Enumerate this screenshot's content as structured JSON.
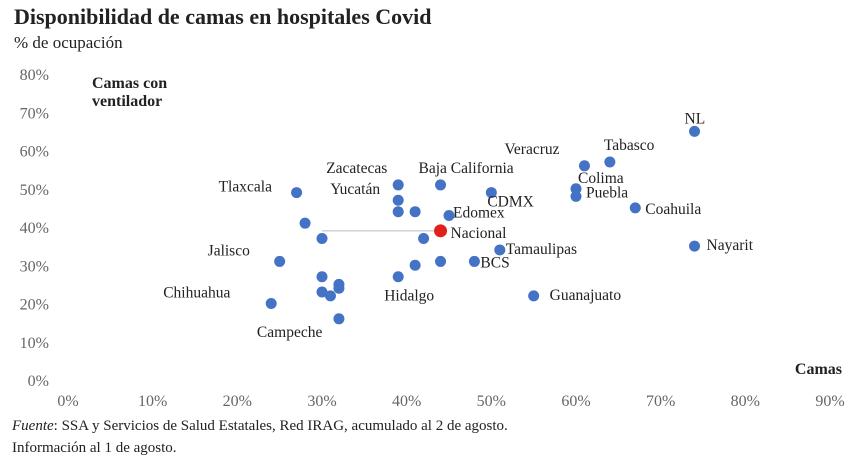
{
  "title": "Disponibilidad de camas en hospitales Covid",
  "subtitle": "% de ocupación",
  "footer": {
    "source_label": "Fuente",
    "source_text": ": SSA y Servicios de Salud Estatales, Red IRAG, acumulado al 2 de agosto.",
    "note": "Información al 1 de agosto."
  },
  "chart_data": {
    "type": "scatter",
    "xlabel": "Camas",
    "ylabel_lines": [
      "Camas con",
      "ventilador"
    ],
    "xlim": [
      0,
      90
    ],
    "ylim": [
      0,
      80
    ],
    "xticks": [
      "0%",
      "10%",
      "20%",
      "30%",
      "40%",
      "50%",
      "60%",
      "70%",
      "80%",
      "90%"
    ],
    "yticks": [
      "0%",
      "10%",
      "20%",
      "30%",
      "40%",
      "50%",
      "60%",
      "70%",
      "80%"
    ],
    "colors": {
      "point": "#4472c4",
      "highlight": "#e0201c",
      "reference_line": "#bbbbbb"
    },
    "points": [
      {
        "label": "NL",
        "x": 74,
        "y": 65
      },
      {
        "label": "Tabasco",
        "x": 64,
        "y": 57
      },
      {
        "label": "Veracruz",
        "x": 61,
        "y": 56
      },
      {
        "label": "Colima",
        "x": 60,
        "y": 50
      },
      {
        "label": "Puebla",
        "x": 60,
        "y": 48
      },
      {
        "label": "Coahuila",
        "x": 67,
        "y": 45
      },
      {
        "label": "Nayarit",
        "x": 74,
        "y": 35
      },
      {
        "label": "Tamaulipas",
        "x": 51,
        "y": 34
      },
      {
        "label": "BCS",
        "x": 48,
        "y": 31
      },
      {
        "label": "Guanajuato",
        "x": 55,
        "y": 22
      },
      {
        "label": "CDMX",
        "x": 50,
        "y": 49
      },
      {
        "label": "Edomex",
        "x": 45,
        "y": 43
      },
      {
        "label": "Nacional",
        "x": 44,
        "y": 39,
        "highlight": true
      },
      {
        "label": "Baja California",
        "x": 44,
        "y": 51
      },
      {
        "label": "Zacatecas",
        "x": 39,
        "y": 51
      },
      {
        "label": "Yucatán",
        "x": 39,
        "y": 47
      },
      {
        "label": "Tlaxcala",
        "x": 27,
        "y": 49
      },
      {
        "label": "Jalisco",
        "x": 25,
        "y": 31
      },
      {
        "label": "Chihuahua",
        "x": 24,
        "y": 20
      },
      {
        "label": "Campeche",
        "x": 32,
        "y": 16
      },
      {
        "label": "Hidalgo",
        "x": 39,
        "y": 27
      },
      {
        "label": "",
        "x": 28,
        "y": 41
      },
      {
        "label": "",
        "x": 30,
        "y": 37
      },
      {
        "label": "",
        "x": 39,
        "y": 44
      },
      {
        "label": "",
        "x": 41,
        "y": 44
      },
      {
        "label": "",
        "x": 42,
        "y": 37
      },
      {
        "label": "",
        "x": 41,
        "y": 30
      },
      {
        "label": "",
        "x": 44,
        "y": 31
      },
      {
        "label": "",
        "x": 30,
        "y": 27
      },
      {
        "label": "",
        "x": 32,
        "y": 25
      },
      {
        "label": "",
        "x": 32,
        "y": 24
      },
      {
        "label": "",
        "x": 30,
        "y": 23
      },
      {
        "label": "",
        "x": 31,
        "y": 22
      }
    ]
  }
}
